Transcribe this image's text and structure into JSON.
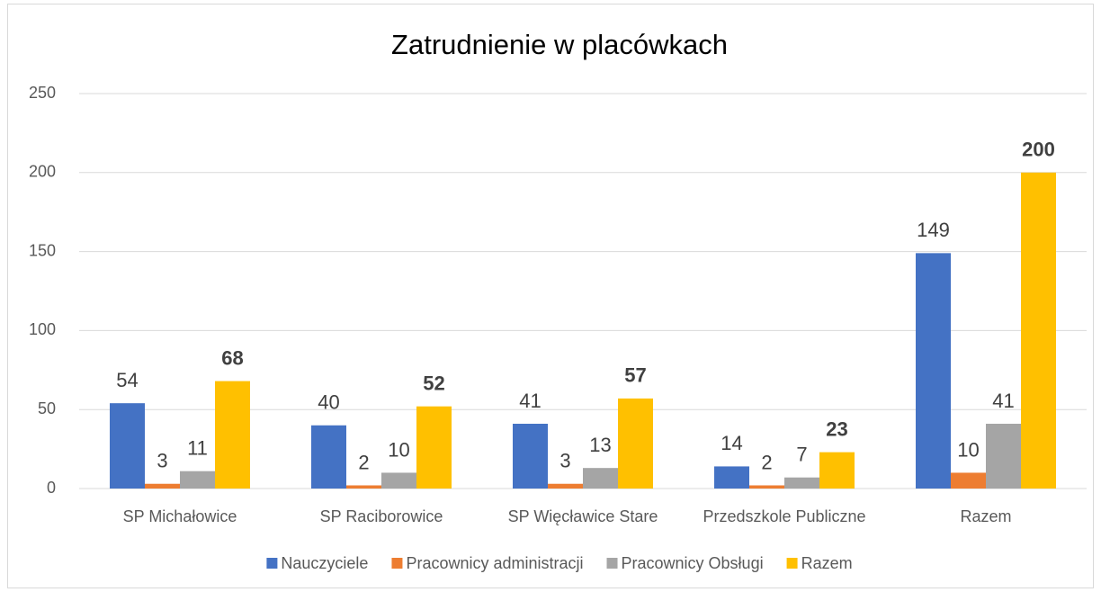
{
  "chart_data": {
    "type": "bar",
    "title": "Zatrudnienie w placówkach",
    "categories": [
      "SP Michałowice",
      "SP Raciborowice",
      "SP Więcławice Stare",
      "Przedszkole Publiczne",
      "Razem"
    ],
    "series": [
      {
        "name": "Nauczyciele",
        "color": "#4472c4",
        "values": [
          54,
          40,
          41,
          14,
          149
        ]
      },
      {
        "name": "Pracownicy administracji",
        "color": "#ed7d31",
        "values": [
          3,
          2,
          3,
          2,
          10
        ]
      },
      {
        "name": "Pracownicy Obsługi",
        "color": "#a5a5a5",
        "values": [
          11,
          10,
          13,
          7,
          41
        ]
      },
      {
        "name": "Razem",
        "color": "#ffc000",
        "values": [
          68,
          52,
          57,
          23,
          200
        ],
        "bold_labels": true
      }
    ],
    "ylim": [
      0,
      250
    ],
    "yticks": [
      0,
      50,
      100,
      150,
      200,
      250
    ],
    "grid": true,
    "legend": "bottom"
  }
}
